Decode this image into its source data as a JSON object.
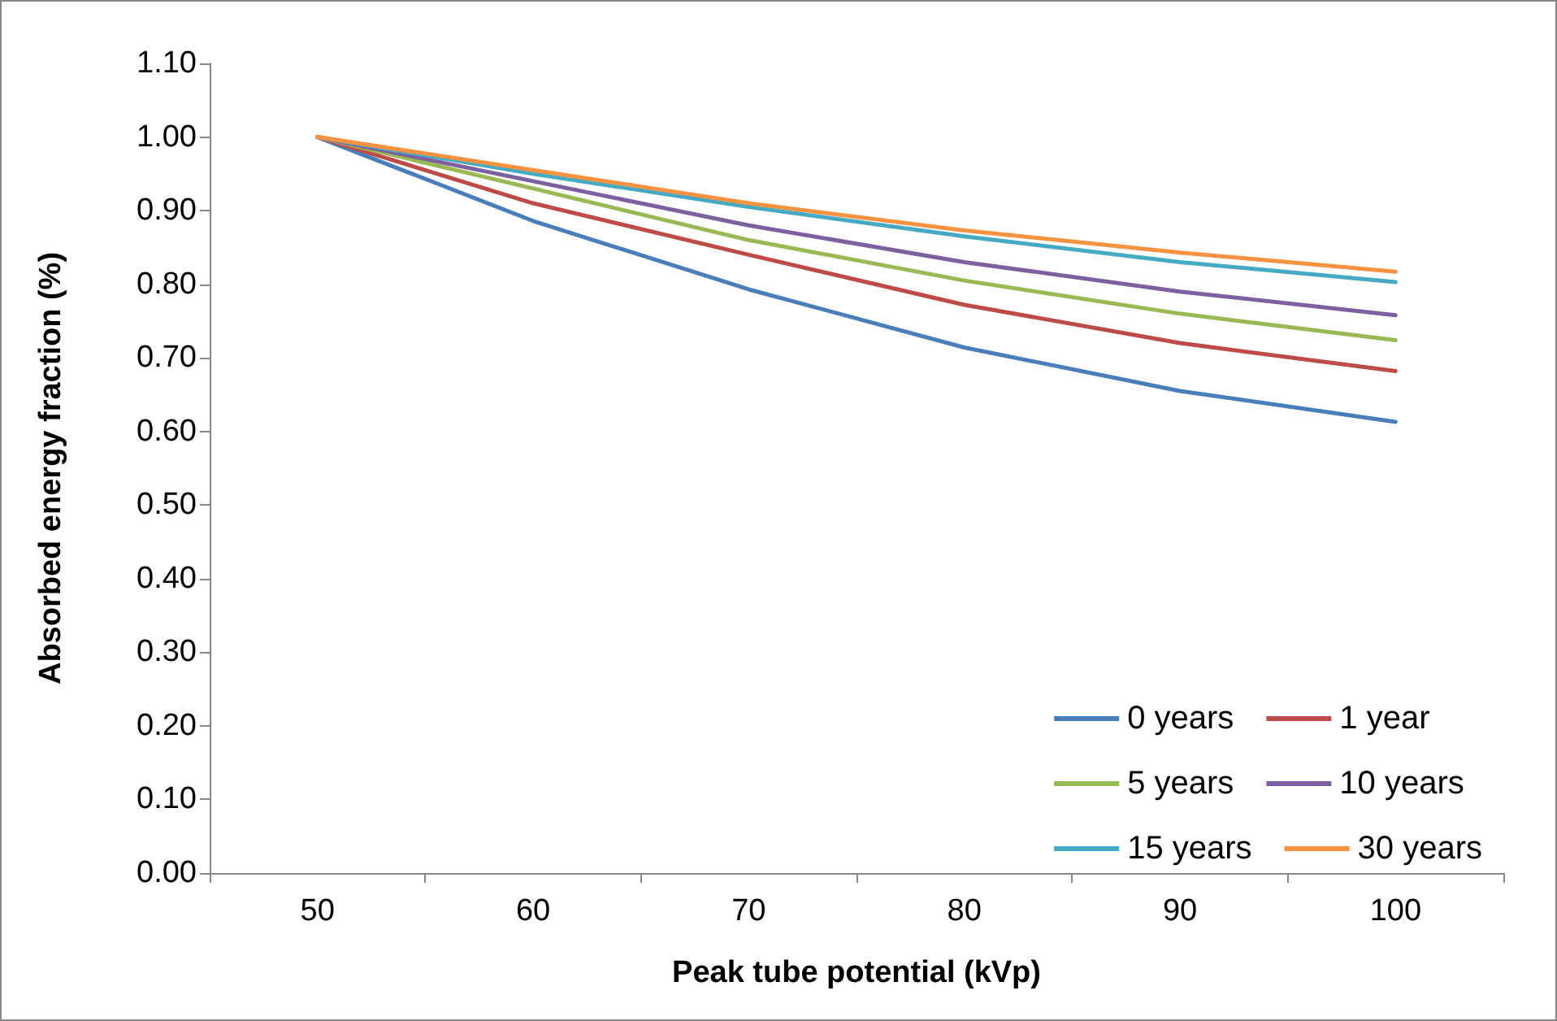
{
  "chart_data": {
    "type": "line",
    "xlabel": "Peak tube potential (kVp)",
    "ylabel": "Absorbed energy fraction (%)",
    "categories": [
      "50",
      "60",
      "70",
      "80",
      "90",
      "100"
    ],
    "ylim": [
      0,
      1.1
    ],
    "yticks": [
      {
        "value": 0,
        "label": "0.00"
      },
      {
        "value": 0.1,
        "label": "0.10"
      },
      {
        "value": 0.2,
        "label": "0.20"
      },
      {
        "value": 0.3,
        "label": "0.30"
      },
      {
        "value": 0.4,
        "label": "0.40"
      },
      {
        "value": 0.5,
        "label": "0.50"
      },
      {
        "value": 0.6,
        "label": "0.60"
      },
      {
        "value": 0.7,
        "label": "0.70"
      },
      {
        "value": 0.8,
        "label": "0.80"
      },
      {
        "value": 0.9,
        "label": "0.90"
      },
      {
        "value": 1.0,
        "label": "1.00"
      },
      {
        "value": 1.1,
        "label": "1.10"
      }
    ],
    "series": [
      {
        "name": "0 years",
        "color": "#4a7ebb",
        "values": [
          1.0,
          0.886,
          0.793,
          0.714,
          0.655,
          0.613
        ]
      },
      {
        "name": "1 year",
        "color": "#be4b48",
        "values": [
          1.0,
          0.91,
          0.84,
          0.772,
          0.72,
          0.682
        ]
      },
      {
        "name": "5 years",
        "color": "#98b954",
        "values": [
          1.0,
          0.93,
          0.86,
          0.805,
          0.76,
          0.724
        ]
      },
      {
        "name": "10 years",
        "color": "#7d60a0",
        "values": [
          1.0,
          0.94,
          0.88,
          0.83,
          0.79,
          0.758
        ]
      },
      {
        "name": "15 years",
        "color": "#46aac5",
        "values": [
          1.0,
          0.95,
          0.905,
          0.865,
          0.83,
          0.803
        ]
      },
      {
        "name": "30 years",
        "color": "#f69240",
        "values": [
          1.0,
          0.955,
          0.91,
          0.873,
          0.843,
          0.817
        ]
      }
    ],
    "grid": false,
    "legend": "bottom right",
    "marker": "none",
    "line_style": "solid"
  }
}
